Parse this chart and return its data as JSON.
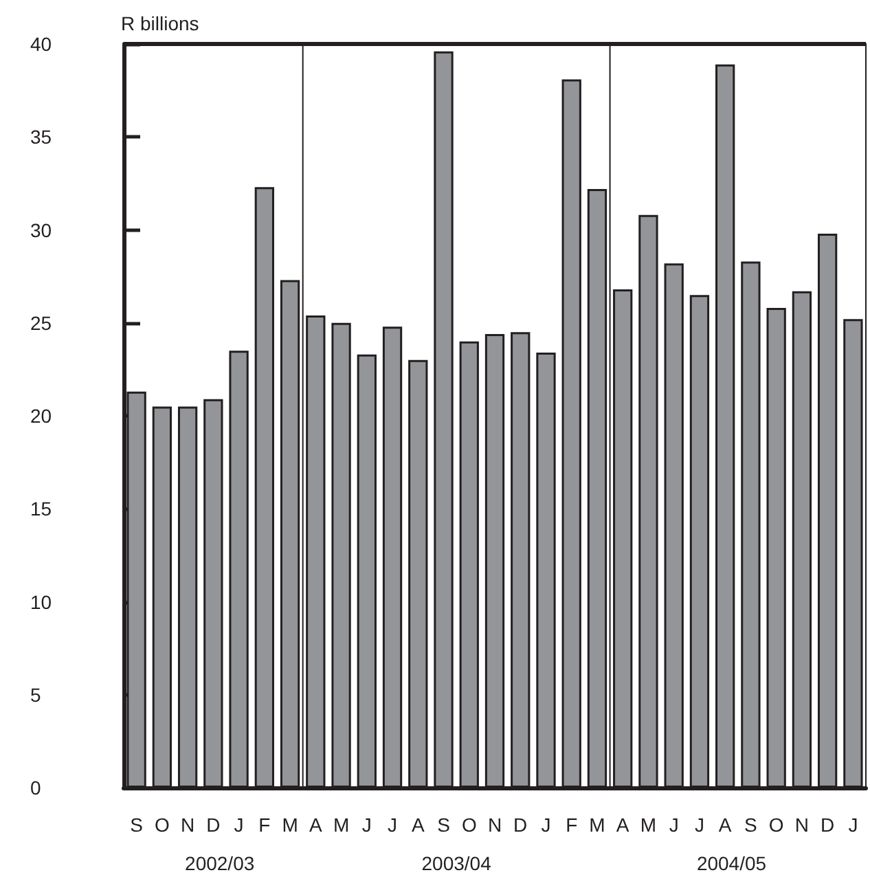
{
  "chart_data": {
    "type": "bar",
    "ylabel": "R billions",
    "categories": [
      "S",
      "O",
      "N",
      "D",
      "J",
      "F",
      "M",
      "A",
      "M",
      "J",
      "J",
      "A",
      "S",
      "O",
      "N",
      "D",
      "J",
      "F",
      "M",
      "A",
      "M",
      "J",
      "J",
      "A",
      "S",
      "O",
      "N",
      "D",
      "J"
    ],
    "values": [
      21.3,
      20.5,
      20.5,
      20.9,
      23.5,
      32.3,
      27.3,
      25.4,
      25.0,
      23.3,
      24.8,
      23.0,
      39.6,
      24.0,
      24.4,
      24.5,
      23.4,
      38.1,
      32.2,
      26.8,
      30.8,
      28.2,
      26.5,
      38.9,
      28.3,
      25.8,
      26.7,
      29.8,
      25.2
    ],
    "color": "#939598",
    "ylim": [
      0,
      40
    ],
    "yticks": [
      0,
      5,
      10,
      15,
      20,
      25,
      30,
      35,
      40
    ],
    "annotations": [
      "2002/03",
      "2003/04",
      "2004/05"
    ],
    "grid": false
  }
}
